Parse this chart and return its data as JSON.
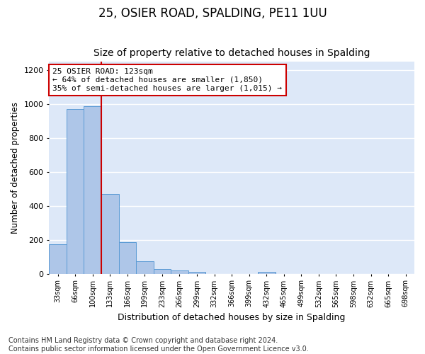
{
  "title": "25, OSIER ROAD, SPALDING, PE11 1UU",
  "subtitle": "Size of property relative to detached houses in Spalding",
  "xlabel": "Distribution of detached houses by size in Spalding",
  "ylabel": "Number of detached properties",
  "bar_categories": [
    "33sqm",
    "66sqm",
    "100sqm",
    "133sqm",
    "166sqm",
    "199sqm",
    "233sqm",
    "266sqm",
    "299sqm",
    "332sqm",
    "366sqm",
    "399sqm",
    "432sqm",
    "465sqm",
    "499sqm",
    "532sqm",
    "565sqm",
    "598sqm",
    "632sqm",
    "665sqm",
    "698sqm"
  ],
  "bar_values": [
    175,
    970,
    990,
    470,
    185,
    75,
    28,
    18,
    12,
    0,
    0,
    0,
    12,
    0,
    0,
    0,
    0,
    0,
    0,
    0,
    0
  ],
  "bar_color": "#aec6e8",
  "bar_edge_color": "#5b9bd5",
  "vline_color": "#cc0000",
  "vline_x": 2.5,
  "annotation_text": "25 OSIER ROAD: 123sqm\n← 64% of detached houses are smaller (1,850)\n35% of semi-detached houses are larger (1,015) →",
  "annotation_box_color": "#ffffff",
  "annotation_box_edge_color": "#cc0000",
  "ylim": [
    0,
    1250
  ],
  "yticks": [
    0,
    200,
    400,
    600,
    800,
    1000,
    1200
  ],
  "bg_color": "#dde8f8",
  "grid_color": "#ffffff",
  "footnote": "Contains HM Land Registry data © Crown copyright and database right 2024.\nContains public sector information licensed under the Open Government Licence v3.0.",
  "title_fontsize": 12,
  "subtitle_fontsize": 10,
  "xlabel_fontsize": 9,
  "ylabel_fontsize": 8.5,
  "footnote_fontsize": 7,
  "annot_fontsize": 8
}
